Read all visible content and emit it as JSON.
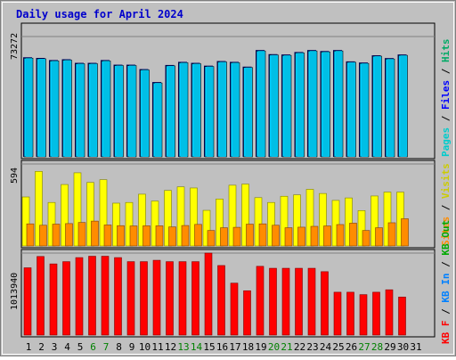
{
  "chart_data": [
    {
      "type": "bar",
      "title": "Daily usage for April 2024",
      "panel": "top",
      "ymax_label": "73272",
      "ylim": [
        0,
        73272
      ],
      "categories": [
        "1",
        "2",
        "3",
        "4",
        "5",
        "6",
        "7",
        "8",
        "9",
        "10",
        "11",
        "12",
        "13",
        "14",
        "15",
        "16",
        "17",
        "18",
        "19",
        "20",
        "21",
        "22",
        "23",
        "24",
        "25",
        "26",
        "27",
        "28",
        "29",
        "30",
        "31"
      ],
      "weekend_days": [
        "6",
        "7",
        "13",
        "14",
        "20",
        "21",
        "27",
        "28"
      ],
      "series": [
        {
          "name": "Hits",
          "color": "#00ccff",
          "values": [
            60100,
            59700,
            58400,
            58900,
            56700,
            56700,
            58400,
            55600,
            55600,
            52900,
            45000,
            55400,
            57300,
            56700,
            55000,
            57800,
            57300,
            54400,
            64500,
            62000,
            61800,
            63300,
            64500,
            63900,
            64500,
            57600,
            56900,
            61300,
            59600,
            61800,
            0
          ]
        },
        {
          "name": "Files",
          "color": "#0000ff",
          "values": [
            60100,
            59700,
            58400,
            58900,
            56700,
            56700,
            58400,
            55600,
            55600,
            52900,
            45000,
            55400,
            57300,
            56700,
            55000,
            57800,
            57300,
            54400,
            64500,
            62000,
            61800,
            63300,
            64500,
            63900,
            64500,
            57600,
            56900,
            61300,
            59600,
            61800,
            0
          ]
        },
        {
          "name": "Pages",
          "color": "#00cccc",
          "values": [
            0,
            0,
            0,
            0,
            0,
            0,
            0,
            0,
            0,
            0,
            0,
            0,
            0,
            0,
            0,
            0,
            0,
            0,
            0,
            0,
            0,
            0,
            0,
            0,
            0,
            0,
            0,
            0,
            0,
            0,
            0
          ]
        }
      ],
      "ylabel_parts": [
        {
          "text": "Pages",
          "color": "#00cccc"
        },
        {
          "text": " / ",
          "color": "#000000"
        },
        {
          "text": "Files",
          "color": "#0000ff"
        },
        {
          "text": " / ",
          "color": "#000000"
        },
        {
          "text": "Hits",
          "color": "#00aa66"
        }
      ]
    },
    {
      "type": "bar",
      "panel": "middle",
      "ymax_label": "594",
      "ylim": [
        0,
        594
      ],
      "series": [
        {
          "name": "Visits",
          "color": "#ffff00",
          "values": [
            355,
            540,
            315,
            445,
            530,
            460,
            480,
            310,
            315,
            375,
            325,
            402,
            428,
            420,
            258,
            340,
            440,
            448,
            350,
            315,
            360,
            370,
            410,
            380,
            330,
            348,
            256,
            362,
            390,
            390,
            0
          ]
        },
        {
          "name": "Sites",
          "color": "#ff8c00",
          "values": [
            160,
            150,
            158,
            162,
            170,
            180,
            152,
            147,
            145,
            146,
            146,
            138,
            148,
            156,
            112,
            132,
            135,
            158,
            160,
            150,
            132,
            136,
            142,
            145,
            155,
            165,
            112,
            132,
            168,
            197,
            0
          ]
        }
      ],
      "ylabel_parts": [
        {
          "text": "Sites",
          "color": "#ff8c00"
        },
        {
          "text": " / ",
          "color": "#000000"
        },
        {
          "text": "Visits",
          "color": "#cccc00"
        }
      ]
    },
    {
      "type": "bar",
      "panel": "bottom",
      "ymax_label": "1013940",
      "ylim": [
        0,
        1013940
      ],
      "series": [
        {
          "name": "KB F",
          "color": "#ff0000",
          "values": [
            832000,
            0,
            0,
            0,
            0,
            0,
            0,
            0,
            0,
            0,
            0,
            0,
            0,
            0,
            0,
            0,
            0,
            0,
            0,
            0,
            0,
            0,
            0,
            0,
            0,
            0,
            0,
            0,
            0,
            0,
            0
          ]
        },
        {
          "name": "KB F all",
          "color": "#ff0000",
          "values": [
            832000,
            972000,
            880000,
            908000,
            958000,
            975000,
            975000,
            958000,
            908000,
            908000,
            925000,
            908000,
            908000,
            908000,
            1013940,
            860000,
            642000,
            548000,
            850000,
            826000,
            826000,
            826000,
            826000,
            784000,
            530000,
            530000,
            500000,
            530000,
            560000,
            470000,
            0
          ]
        }
      ],
      "ylabel_parts": [
        {
          "text": "KB F",
          "color": "#ff0000"
        },
        {
          "text": " / ",
          "color": "#000000"
        },
        {
          "text": "KB In",
          "color": "#0080ff"
        },
        {
          "text": " / ",
          "color": "#000000"
        },
        {
          "text": "KB Out",
          "color": "#00aa00"
        }
      ]
    }
  ]
}
